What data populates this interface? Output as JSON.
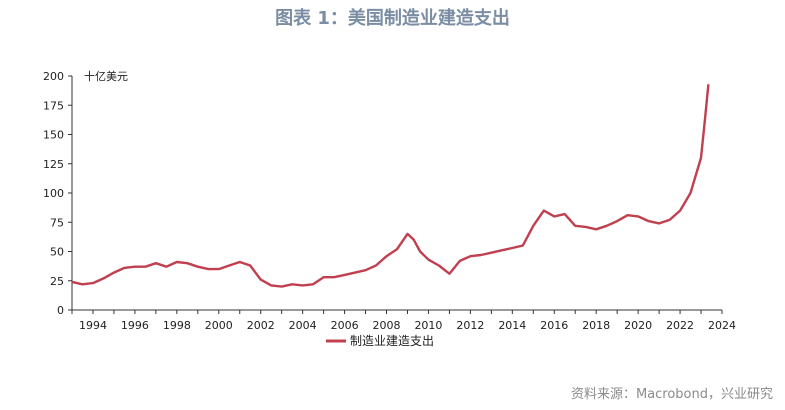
{
  "title": "图表 1：美国制造业建造支出",
  "source": "资料来源：Macrobond，兴业研究",
  "chart_data": {
    "type": "line",
    "unit_label": "十亿美元",
    "ylim": [
      0,
      200
    ],
    "xlim": [
      1993.0,
      2024.0
    ],
    "y_ticks": [
      0,
      25,
      50,
      75,
      100,
      125,
      150,
      175,
      200
    ],
    "x_ticks": [
      1994,
      1996,
      1998,
      2000,
      2002,
      2004,
      2006,
      2008,
      2010,
      2012,
      2014,
      2016,
      2018,
      2020,
      2022,
      2024
    ],
    "legend_position": "bottom-center",
    "grid": false,
    "series": [
      {
        "name": "制造业建造支出",
        "color": "#c0404f",
        "x": [
          1993.0,
          1993.5,
          1994.0,
          1994.5,
          1995.0,
          1995.5,
          1996.0,
          1996.5,
          1997.0,
          1997.5,
          1998.0,
          1998.5,
          1999.0,
          1999.5,
          2000.0,
          2000.5,
          2001.0,
          2001.5,
          2002.0,
          2002.5,
          2003.0,
          2003.5,
          2004.0,
          2004.5,
          2005.0,
          2005.5,
          2006.0,
          2006.5,
          2007.0,
          2007.5,
          2008.0,
          2008.5,
          2009.0,
          2009.3,
          2009.6,
          2010.0,
          2010.5,
          2011.0,
          2011.5,
          2012.0,
          2012.5,
          2013.0,
          2013.5,
          2014.0,
          2014.5,
          2015.0,
          2015.5,
          2016.0,
          2016.5,
          2017.0,
          2017.5,
          2018.0,
          2018.5,
          2019.0,
          2019.5,
          2020.0,
          2020.5,
          2021.0,
          2021.5,
          2022.0,
          2022.5,
          2022.8,
          2023.0,
          2023.2,
          2023.35
        ],
        "values": [
          24,
          22,
          23,
          27,
          32,
          36,
          37,
          37,
          40,
          37,
          41,
          40,
          37,
          35,
          35,
          38,
          41,
          38,
          26,
          21,
          20,
          22,
          21,
          22,
          28,
          28,
          30,
          32,
          34,
          38,
          46,
          52,
          65,
          60,
          50,
          43,
          38,
          31,
          42,
          46,
          47,
          49,
          51,
          53,
          55,
          72,
          85,
          80,
          82,
          72,
          71,
          69,
          72,
          76,
          81,
          80,
          76,
          74,
          77,
          85,
          100,
          118,
          130,
          165,
          193
        ]
      }
    ]
  }
}
